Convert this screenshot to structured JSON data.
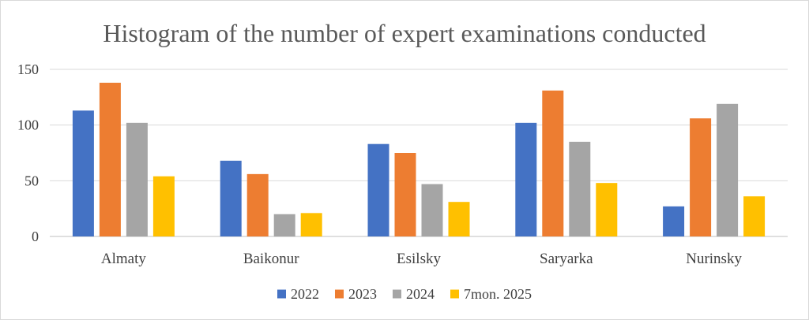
{
  "chart_data": {
    "type": "bar",
    "title": "Histogram of the number of expert examinations conducted",
    "categories": [
      "Almaty",
      "Baikonur",
      "Esilsky",
      "Saryarka",
      "Nurinsky"
    ],
    "series": [
      {
        "name": "2022",
        "color": "#4472c4",
        "values": [
          113,
          68,
          83,
          102,
          27
        ]
      },
      {
        "name": "2023",
        "color": "#ed7d31",
        "values": [
          138,
          56,
          75,
          131,
          106
        ]
      },
      {
        "name": "2024",
        "color": "#a5a5a5",
        "values": [
          102,
          20,
          47,
          85,
          119
        ]
      },
      {
        "name": "7mon. 2025",
        "color": "#ffc000",
        "values": [
          54,
          21,
          31,
          48,
          36
        ]
      }
    ],
    "ylim": [
      0,
      150
    ],
    "yticks": [
      0,
      50,
      100,
      150
    ],
    "grid": true,
    "legend_position": "bottom"
  }
}
